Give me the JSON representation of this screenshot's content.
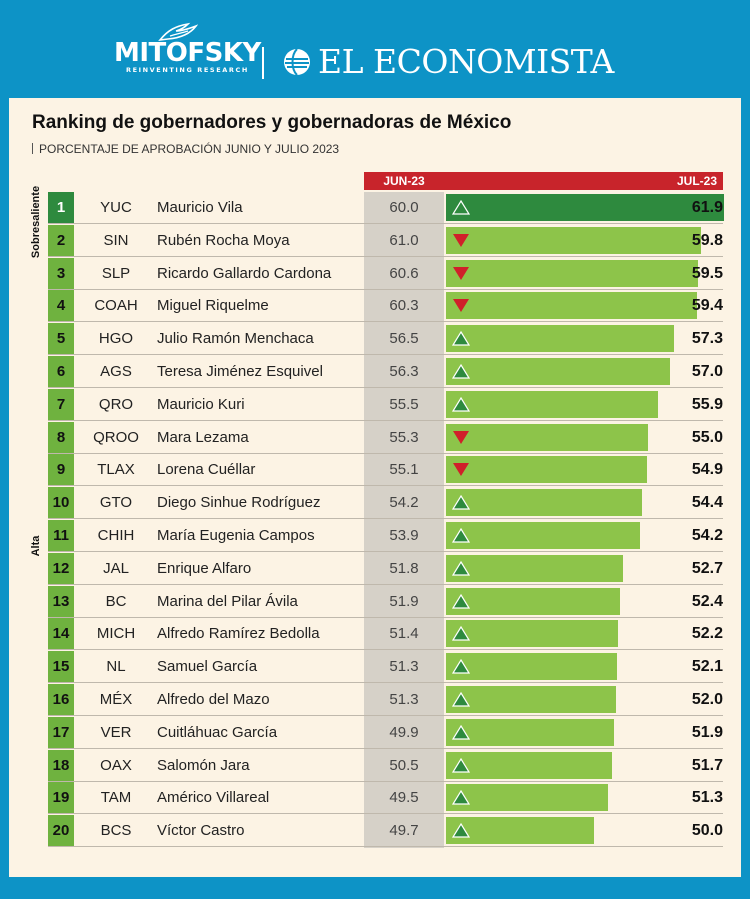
{
  "header": {
    "logo_left": "MITOFSKY",
    "logo_left_tagline": "REINVENTING RESEARCH",
    "logo_right": "EL ECONOMISTA"
  },
  "colors": {
    "frame": "#0d93c6",
    "panel": "#fcf3e4",
    "accent_red": "#c8242b",
    "bar_green": "#8dc44a",
    "leader_green": "#2e8a3e",
    "up_arrow": "#2e8a3e",
    "down_arrow": "#d0202a"
  },
  "chart_data": {
    "type": "bar",
    "title": "Ranking de gobernadores y gobernadoras de México",
    "subtitle": "PORCENTAJE DE APROBACIÓN JUNIO Y JULIO 2023",
    "column_headers": {
      "jun": "JUN-23",
      "jul": "JUL-23"
    },
    "groups": [
      {
        "label": "Sobresaliente",
        "from_rank": 1,
        "to_rank": 1
      },
      {
        "label": "Alta",
        "from_rank": 2,
        "to_rank": 20
      }
    ],
    "xlim": [
      0,
      61.9
    ],
    "rows": [
      {
        "rank": "1",
        "state": "YUC",
        "name": "Mauricio Vila",
        "jun": 60.0,
        "jul": 61.9,
        "trend": "up"
      },
      {
        "rank": "2",
        "state": "SIN",
        "name": "Rubén Rocha Moya",
        "jun": 61.0,
        "jul": 59.8,
        "trend": "down"
      },
      {
        "rank": "3",
        "state": "SLP",
        "name": "Ricardo Gallardo Cardona",
        "jun": 60.6,
        "jul": 59.5,
        "trend": "down"
      },
      {
        "rank": "4",
        "state": "COAH",
        "name": "Miguel Riquelme",
        "jun": 60.3,
        "jul": 59.4,
        "trend": "down"
      },
      {
        "rank": "5",
        "state": "HGO",
        "name": "Julio Ramón Menchaca",
        "jun": 56.5,
        "jul": 57.3,
        "trend": "up"
      },
      {
        "rank": "6",
        "state": "AGS",
        "name": "Teresa Jiménez Esquivel",
        "jun": 56.3,
        "jul": 57.0,
        "trend": "up"
      },
      {
        "rank": "7",
        "state": "QRO",
        "name": "Mauricio Kuri",
        "jun": 55.5,
        "jul": 55.9,
        "trend": "up"
      },
      {
        "rank": "8",
        "state": "QROO",
        "name": "Mara Lezama",
        "jun": 55.3,
        "jul": 55.0,
        "trend": "down"
      },
      {
        "rank": "9",
        "state": "TLAX",
        "name": "Lorena Cuéllar",
        "jun": 55.1,
        "jul": 54.9,
        "trend": "down"
      },
      {
        "rank": "10",
        "state": "GTO",
        "name": "Diego Sinhue Rodríguez",
        "jun": 54.2,
        "jul": 54.4,
        "trend": "up"
      },
      {
        "rank": "11",
        "state": "CHIH",
        "name": "María Eugenia Campos",
        "jun": 53.9,
        "jul": 54.2,
        "trend": "up"
      },
      {
        "rank": "12",
        "state": "JAL",
        "name": "Enrique Alfaro",
        "jun": 51.8,
        "jul": 52.7,
        "trend": "up"
      },
      {
        "rank": "13",
        "state": "BC",
        "name": "Marina del Pilar Ávila",
        "jun": 51.9,
        "jul": 52.4,
        "trend": "up"
      },
      {
        "rank": "14",
        "state": "MICH",
        "name": "Alfredo Ramírez Bedolla",
        "jun": 51.4,
        "jul": 52.2,
        "trend": "up"
      },
      {
        "rank": "15",
        "state": "NL",
        "name": "Samuel García",
        "jun": 51.3,
        "jul": 52.1,
        "trend": "up"
      },
      {
        "rank": "16",
        "state": "MÉX",
        "name": "Alfredo del Mazo",
        "jun": 51.3,
        "jul": 52.0,
        "trend": "up"
      },
      {
        "rank": "17",
        "state": "VER",
        "name": "Cuitláhuac García",
        "jun": 49.9,
        "jul": 51.9,
        "trend": "up"
      },
      {
        "rank": "18",
        "state": "OAX",
        "name": "Salomón Jara",
        "jun": 50.5,
        "jul": 51.7,
        "trend": "up"
      },
      {
        "rank": "19",
        "state": "TAM",
        "name": "Américo Villareal",
        "jun": 49.5,
        "jul": 51.3,
        "trend": "up"
      },
      {
        "rank": "20",
        "state": "BCS",
        "name": "Víctor Castro",
        "jun": 49.7,
        "jul": 50.0,
        "trend": "up"
      }
    ]
  }
}
